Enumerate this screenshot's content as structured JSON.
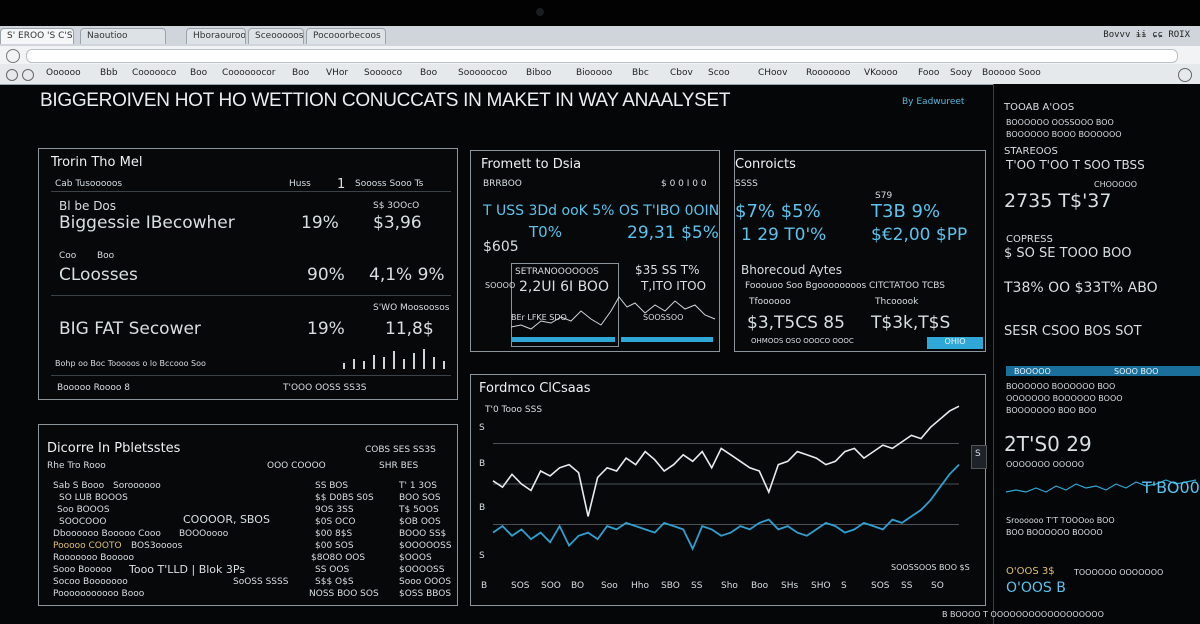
{
  "browser": {
    "tabs": [
      "S' EROO 'S C'S",
      "Naoutioo",
      "Hboraourooaa",
      "Sceoooooses",
      "Pocooorbecoos"
    ],
    "right_icons": "Bovvv  ɨɨ  ɕɕ  ROIX",
    "menu": [
      "Oooooo",
      "Bbb",
      "Coooooco",
      "Boo",
      "Coooooocor",
      "Boo",
      "VHor",
      "Sooooco",
      "Boo",
      "Sooooocoo",
      "Biboo",
      "Biooooo",
      "Bbc",
      "Cbov",
      "Scoo",
      "CHoov",
      "Rooooooo",
      "VKoooo",
      "Fooo",
      "Sooy",
      "Booooo Sooo"
    ]
  },
  "header": {
    "title": "BIGGEROIVEN HOT HO WETTION CONUCCATS IN MAKET IN WAY ANAALYSET",
    "subtitle": "By Eadwureet"
  },
  "panel_market": {
    "title": "Trorin Tho Mel",
    "col_a": "Cab Tusooooos",
    "col_b": "Huss",
    "col_c": "1",
    "col_d": "Soooss Sooo Ts",
    "rows": [
      {
        "name_top": "Bl be Dos",
        "name": "Biggessie IBecowher",
        "pct": "19%",
        "val": "$3,96"
      },
      {
        "name_top": "Coo",
        "name": "CLoosses",
        "pct": "90%",
        "val": "4,1% 9%"
      },
      {
        "name": "BIG FAT Secower",
        "pct": "19%",
        "val": "11,8$"
      }
    ],
    "val_top": "S$ 3OOcO",
    "row2_hdr": "Boo",
    "row3_hdr": "S'WO Moosoosos",
    "footer_note": "Bohp oo Boc Tooooos  o  lo  Bccooo Soo",
    "footer_left": "Booooo Roooo 8",
    "footer_right": "T'OOO OOSS  SS3S"
  },
  "panel_profit": {
    "title": "Fromett to Dsia",
    "hdr_left": "BRRBOO",
    "hdr_right": "$ 0 0 I  0 0",
    "row1": "T USS 3Dd ooK 5% OS T'IBO 0OIN",
    "row2_left": "T0%",
    "row2_right": "29,31 $5%",
    "row3": "$605",
    "chart_label": "SETRANOOOOOOS",
    "chart_val": "2,2UI 6I BOO",
    "stat_top": "$35  SS  T%",
    "stat_mid": "T,ITO  ITOO",
    "small_a": "BEr  LFKE  SDO",
    "small_b": "SOOSSOO",
    "small_c": "SOOOO"
  },
  "panel_controls": {
    "title": "Conroicts",
    "hdr_a": "SSSS",
    "hdr_b": "S79",
    "big_a": "$7% $5%",
    "big_b": "T3B 9%",
    "row_a": "1  29 T0'%",
    "row_b": "$€2,00 $PP",
    "sub_title": "Bhorecoud Aytes",
    "sub_line": "Fooouoo   Soo Bgoooooooos  CITCTATOO  TCBS",
    "label_a": "Tfoooooo",
    "label_b": "Thcooook",
    "big_c": "$3,T5CS  85",
    "big_d": "T$3k,T$S",
    "foot": "OHMOOS  OSO  OOOCO  OOOC",
    "button": "OHIO"
  },
  "panel_portfolio": {
    "title": "Dicorre In Pbletsstes",
    "note": "SHR BES",
    "subhead_left": "Rhe  Tro Rooo",
    "subhead_right": "OOO COOOO",
    "right_head": "COBS  SES SS3S",
    "rows": [
      [
        "Sab  S Booo",
        "Soroooooo",
        "SS BOS",
        "T' 1 3OS"
      ],
      [
        "SO  LUB  BOOOS",
        "",
        "$$  D0BS  S0S",
        "BOO SOS"
      ],
      [
        "Soo  BOOOS",
        "",
        "9OS  3SS",
        "T$ 5OOS"
      ],
      [
        "SOOCOOO",
        "COOOOR, SBOS",
        "$0S OCO",
        "$OB  OOS"
      ],
      [
        "Dboooooo Booooo Cooo",
        "BOOOoooo",
        "$00  8$S",
        "BOOO  SS$"
      ],
      [
        "Pooooo  COOTO",
        "BOS3oooos",
        "$00 SOS",
        "$OOOOOSS"
      ],
      [
        "Rooooooo  Booooo",
        "",
        "$8O8O  OOS",
        "$OOOS"
      ],
      [
        "Sooo Booooo",
        "Tooo   T'LLD | Blok  3Ps",
        "SS  OOS",
        "$OOOOSS"
      ],
      [
        "Socoo  Booooooo",
        "SoOSS  SSSS",
        "S$$  O$S",
        "Sooo  OOOS"
      ],
      [
        "Pooooooooooo  Booo",
        "",
        "NOSS  BOO  SOS",
        "$OSS  BBOS"
      ]
    ]
  },
  "panel_chart": {
    "title": "Fordmco ClCsaas",
    "sub": "T'0  Tooo  SSS",
    "ytick_top": "S",
    "ytick_mid": "B",
    "ytick_low": "B",
    "ytick_bottom": "S",
    "corner_label": "SOOSSOOS  BOO  $S",
    "x_labels": [
      "B",
      "SOS",
      "SOO",
      "BO",
      "Soo",
      "Hho",
      "SBO",
      "SS",
      "Sho",
      "Boo",
      "SHs",
      "SHO",
      "S",
      "SOS",
      "SS",
      "SO"
    ],
    "right_tag": "S"
  },
  "chart_data": {
    "type": "line",
    "title": "Fordmco ClCsaas",
    "series": [
      {
        "values": [
          52,
          48,
          56,
          50,
          46,
          58,
          55,
          60,
          62,
          57,
          30,
          54,
          60,
          58,
          66,
          62,
          70,
          65,
          58,
          62,
          68,
          64,
          70,
          60,
          72,
          68,
          64,
          60,
          58,
          45,
          62,
          64,
          70,
          68,
          66,
          62,
          64,
          70,
          72,
          66,
          70,
          74,
          72,
          76,
          80,
          78,
          85,
          90,
          95,
          98
        ]
      },
      {
        "values": [
          20,
          24,
          18,
          22,
          16,
          20,
          14,
          24,
          12,
          18,
          20,
          16,
          24,
          22,
          26,
          24,
          22,
          20,
          26,
          24,
          22,
          10,
          24,
          22,
          18,
          20,
          24,
          22,
          26,
          28,
          22,
          24,
          20,
          18,
          22,
          26,
          24,
          20,
          22,
          26,
          24,
          22,
          28,
          26,
          30,
          34,
          40,
          48,
          56,
          62
        ]
      }
    ],
    "ylim": [
      0,
      100
    ],
    "grid": true
  },
  "sidebar": {
    "head": "TOOAB A'OOS",
    "small_rows": [
      "BOOOOOO   OOSSOOO   BOO",
      "BOOOOOO   BOOO   BOOOOOO"
    ],
    "section1": "STAREOOS",
    "big1": "T'OO T'OO  T SOO  TBSS",
    "big2": "2735 T$'37",
    "big2_side": "CHOOOOO",
    "section2": "COPRESS",
    "big3": "$ SO  SE  TOOO BOO",
    "big4": "T38%  OO  $33T% ABO",
    "big5": "SESR  CSOO  BOS  SOT",
    "hl_label": "BOOOOO",
    "hl_right": "SOOO BOO",
    "big6": "2T'S0 29",
    "big7": "T'BO00",
    "lines": [
      "BOOOOOO  BOOOOOO  BOO",
      "OOOOOOO  BOOOOOO  BOOO",
      "BOOOOOOO  BOO  BOO",
      "OOOOOOO  OOOOO",
      "BOO  BOOOOOO  BOOOO"
    ],
    "section3": "Sroooooo   T'T TOOOoo   BOO",
    "bottom_label": "O'OOS 3$",
    "bottom_sub": "TOOOOOO  OOOOOOO",
    "bottom_big": "O'OOS  B",
    "footer": "B   BOOOO T   OOOOOOOOOOOOOOOOOO"
  }
}
